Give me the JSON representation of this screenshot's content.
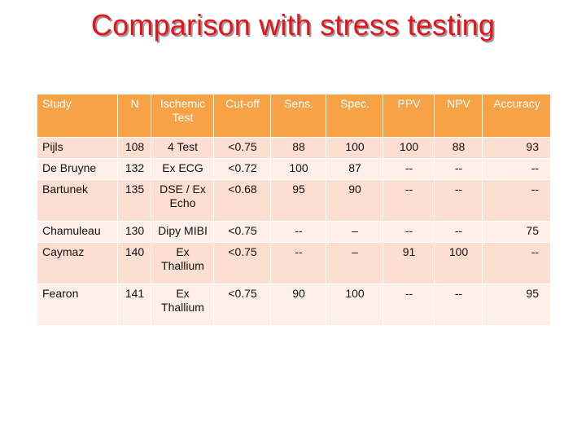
{
  "title": "Comparison with stress testing",
  "table": {
    "headers": [
      "Study",
      "N",
      "Ischemic Test",
      "Cut-off",
      "Sens.",
      "Spec.",
      "PPV",
      "NPV",
      "Accuracy"
    ],
    "rows": [
      [
        "Pijls",
        "108",
        "4 Test",
        "<0.75",
        "88",
        "100",
        "100",
        "88",
        "93"
      ],
      [
        "De Bruyne",
        "132",
        "Ex ECG",
        "<0.72",
        "100",
        "87",
        "--",
        "--",
        "--"
      ],
      [
        "Bartunek",
        "135",
        "DSE / Ex Echo",
        "<0.68",
        "95",
        "90",
        "--",
        "--",
        "--"
      ],
      [
        "Chamuleau",
        "130",
        "Dipy MIBI",
        "<0.75",
        "--",
        "–",
        "--",
        "--",
        "75"
      ],
      [
        "Caymaz",
        "140",
        "Ex Thallium",
        "<0.75",
        "--",
        "–",
        "91",
        "100",
        "--"
      ],
      [
        "Fearon",
        "141",
        "Ex Thallium",
        "<0.75",
        "90",
        "100",
        "--",
        "--",
        "95"
      ]
    ]
  }
}
